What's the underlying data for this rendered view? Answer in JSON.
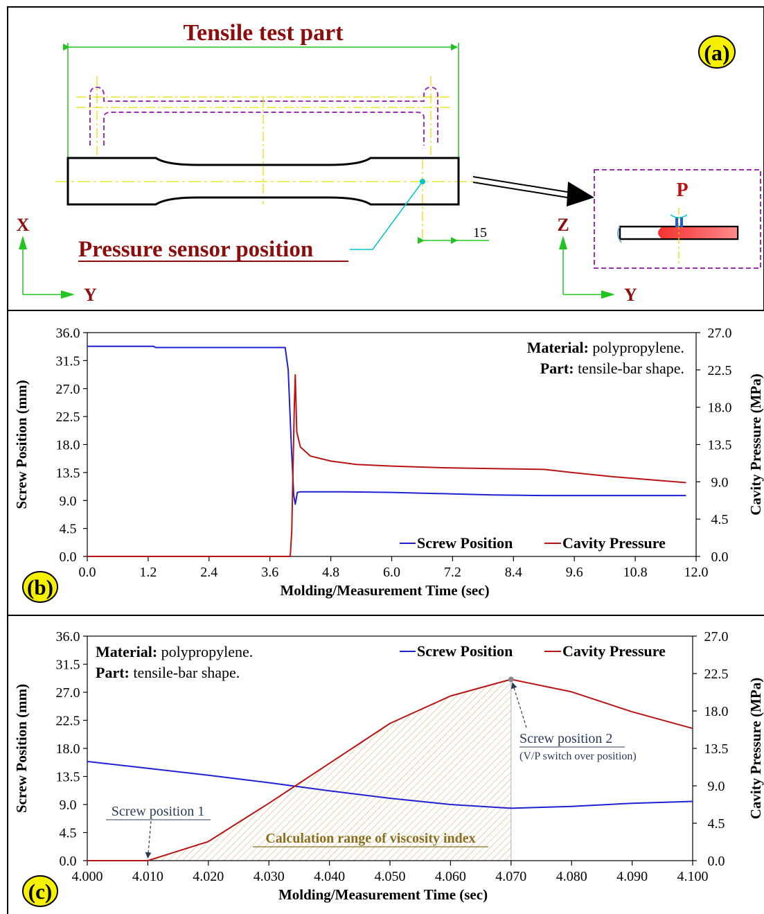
{
  "panel_a": {
    "label": "(a)",
    "title": "Tensile test part",
    "sensor_label": "Pressure sensor position",
    "dimension": "15",
    "left_axis_x": "X",
    "left_axis_y": "Y",
    "right_axis_z": "Z",
    "right_axis_y": "Y",
    "pressure_label": "P"
  },
  "chart_data": [
    {
      "type": "line",
      "panel_label": "(b)",
      "xlabel": "Molding/Measurement Time (sec)",
      "ylabel": "Screw Position (mm)",
      "y2label": "Cavity Pressure (MPa)",
      "xlim": [
        0,
        12
      ],
      "ylim": [
        0,
        36
      ],
      "y2lim": [
        0,
        27
      ],
      "x_ticks": [
        "0.0",
        "1.2",
        "2.4",
        "3.6",
        "4.8",
        "6.0",
        "7.2",
        "8.4",
        "9.6",
        "10.8",
        "12.0"
      ],
      "y_ticks": [
        "0.0",
        "4.5",
        "9.0",
        "13.5",
        "18.0",
        "22.5",
        "27.0",
        "31.5",
        "36.0"
      ],
      "y2_ticks": [
        "0.0",
        "4.5",
        "9.0",
        "13.5",
        "18.0",
        "22.5",
        "27.0"
      ],
      "annotation": {
        "material_key": "Material:",
        "material_value": " polypropylene.",
        "part_key": "Part:",
        "part_value": " tensile-bar shape."
      },
      "legend_position": "bottom-right",
      "series": [
        {
          "name": "Screw Position",
          "axis": "left",
          "color": "#1f1fd6",
          "x": [
            0,
            1.3,
            1.35,
            3.9,
            3.96,
            4.02,
            4.07,
            4.1,
            4.14,
            4.2,
            5.0,
            6.0,
            7.0,
            8.0,
            9.0,
            10.0,
            11.8
          ],
          "y": [
            33.8,
            33.8,
            33.6,
            33.6,
            30.0,
            18.0,
            9.8,
            8.4,
            10.3,
            10.4,
            10.4,
            10.3,
            10.1,
            9.9,
            9.8,
            9.8,
            9.8
          ]
        },
        {
          "name": "Cavity Pressure",
          "axis": "right",
          "color": "#b81414",
          "x": [
            0,
            4.0,
            4.03,
            4.06,
            4.08,
            4.1,
            4.13,
            4.2,
            4.4,
            4.8,
            5.3,
            6.0,
            7.0,
            8.0,
            9.0,
            9.6,
            10.4,
            11.0,
            11.8
          ],
          "y": [
            0,
            0,
            3.0,
            12.0,
            18.0,
            21.9,
            15.0,
            13.2,
            12.1,
            11.5,
            11.1,
            10.9,
            10.7,
            10.6,
            10.5,
            10.1,
            9.6,
            9.3,
            8.9
          ]
        }
      ]
    },
    {
      "type": "line",
      "panel_label": "(c)",
      "xlabel": "Molding/Measurement Time (sec)",
      "ylabel": "Screw Position (mm)",
      "y2label": "Cavity Pressure (MPa)",
      "xlim": [
        4.0,
        4.1
      ],
      "ylim": [
        0,
        36
      ],
      "y2lim": [
        0,
        27
      ],
      "x_ticks": [
        "4.000",
        "4.010",
        "4.020",
        "4.030",
        "4.040",
        "4.050",
        "4.060",
        "4.070",
        "4.080",
        "4.090",
        "4.100"
      ],
      "y_ticks": [
        "0.0",
        "4.5",
        "9.0",
        "13.5",
        "18.0",
        "22.5",
        "27.0",
        "31.5",
        "36.0"
      ],
      "y2_ticks": [
        "0.0",
        "4.5",
        "9.0",
        "13.5",
        "18.0",
        "22.5",
        "27.0"
      ],
      "annotation": {
        "material_key": "Material:",
        "material_value": " polypropylene.",
        "part_key": "Part:",
        "part_value": " tensile-bar shape."
      },
      "legend_position": "top-right",
      "shaded_range_label": "Calculation range of viscosity index",
      "shaded_range": [
        4.01,
        4.07
      ],
      "callouts": [
        {
          "text": "Screw position 1",
          "x": 4.01
        },
        {
          "text": "Screw position 2",
          "subtext": "(V/P switch over position)",
          "x": 4.07
        }
      ],
      "series": [
        {
          "name": "Screw Position",
          "axis": "left",
          "color": "#1f1fd6",
          "x": [
            4.0,
            4.01,
            4.02,
            4.03,
            4.04,
            4.05,
            4.06,
            4.07,
            4.08,
            4.09,
            4.1
          ],
          "y": [
            15.9,
            14.8,
            13.7,
            12.5,
            11.2,
            10.0,
            9.0,
            8.4,
            8.7,
            9.2,
            9.5
          ]
        },
        {
          "name": "Cavity Pressure",
          "axis": "right",
          "color": "#b81414",
          "x": [
            4.0,
            4.01,
            4.02,
            4.03,
            4.04,
            4.05,
            4.06,
            4.07,
            4.08,
            4.09,
            4.1
          ],
          "y": [
            0,
            0,
            2.3,
            6.9,
            11.7,
            16.5,
            19.8,
            21.8,
            20.3,
            17.9,
            15.9
          ]
        }
      ]
    }
  ]
}
